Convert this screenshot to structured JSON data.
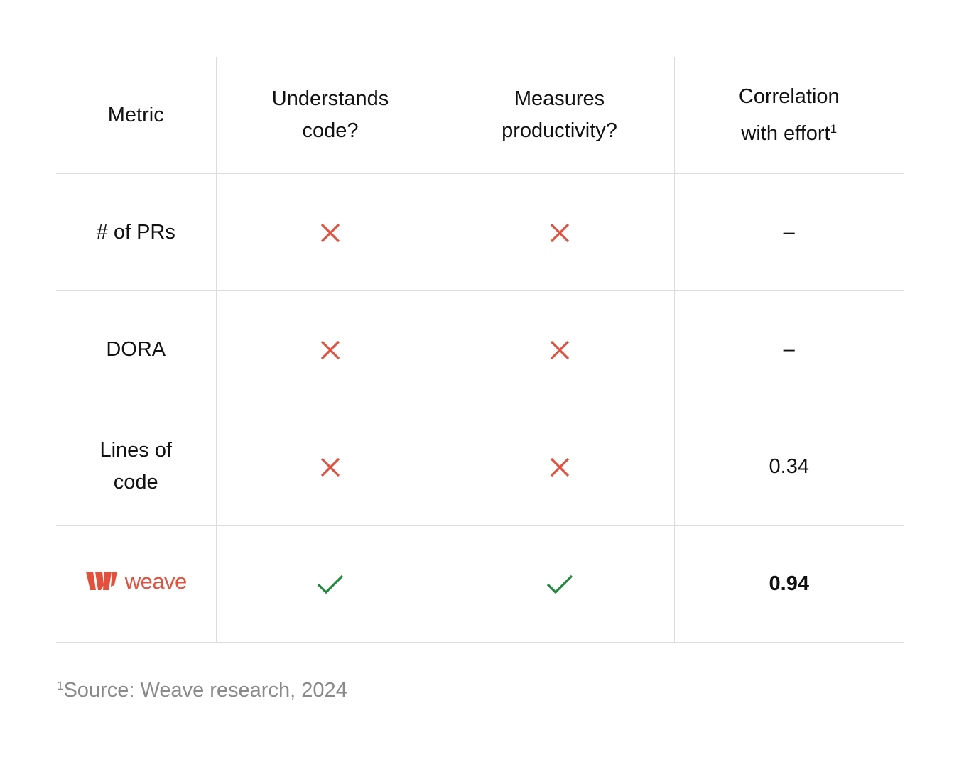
{
  "colors": {
    "cross": "#e3503e",
    "check": "#1f8a3b",
    "brand": "#e3503e",
    "grid": "#dcdcdc",
    "footnote": "#8a8a8a"
  },
  "header": {
    "metric": "Metric",
    "understands_line1": "Understands",
    "understands_line2": "code?",
    "measures_line1": "Measures",
    "measures_line2": "productivity?",
    "correlation_line1": "Correlation",
    "correlation_line2": "with effort",
    "correlation_note": "1"
  },
  "rows": [
    {
      "metric_line1": "# of PRs",
      "metric_line2": "",
      "understands": "cross-icon",
      "measures": "cross-icon",
      "correlation": "–"
    },
    {
      "metric_line1": "DORA",
      "metric_line2": "",
      "understands": "cross-icon",
      "measures": "cross-icon",
      "correlation": "–"
    },
    {
      "metric_line1": "Lines of",
      "metric_line2": "code",
      "understands": "cross-icon",
      "measures": "cross-icon",
      "correlation": "0.34"
    },
    {
      "brand_name": "weave",
      "brand_icon": "weave-logo-icon",
      "understands": "check-icon",
      "measures": "check-icon",
      "correlation": "0.94"
    }
  ],
  "footnote": {
    "marker": "1",
    "text": "Source: Weave research, 2024"
  }
}
